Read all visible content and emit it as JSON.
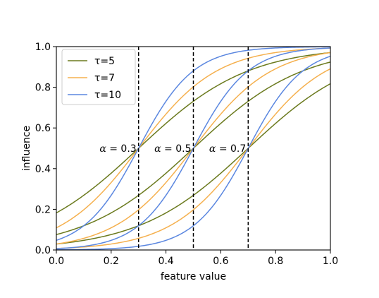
{
  "chart_data": {
    "type": "line",
    "title": "",
    "xlabel": "feature value",
    "ylabel": "influence",
    "xlim": [
      0.0,
      1.0
    ],
    "ylim": [
      0.0,
      1.0
    ],
    "xticks": [
      "0.0",
      "0.2",
      "0.4",
      "0.6",
      "0.8",
      "1.0"
    ],
    "yticks": [
      "0.0",
      "0.2",
      "0.4",
      "0.6",
      "0.8",
      "1.0"
    ],
    "grid": false,
    "legend_position": "top-left",
    "series": [
      {
        "name": "τ=5",
        "tau": 5,
        "color": "#6b7a1e"
      },
      {
        "name": "τ=7",
        "tau": 7,
        "color": "#f5b04e"
      },
      {
        "name": "τ=10",
        "tau": 10,
        "color": "#5b87e0"
      }
    ],
    "alphas": [
      0.3,
      0.5,
      0.7
    ],
    "function": "sigmoid(tau * (x - alpha))",
    "vlines": {
      "x": [
        0.3,
        0.5,
        0.7
      ],
      "style": "dashed",
      "color": "#000000"
    },
    "annotations": [
      {
        "symbol": "α",
        "text": " = 0.3",
        "x": 0.3,
        "y": 0.5
      },
      {
        "symbol": "α",
        "text": " = 0.5",
        "x": 0.5,
        "y": 0.5
      },
      {
        "symbol": "α",
        "text": " = 0.7",
        "x": 0.7,
        "y": 0.5
      }
    ]
  }
}
